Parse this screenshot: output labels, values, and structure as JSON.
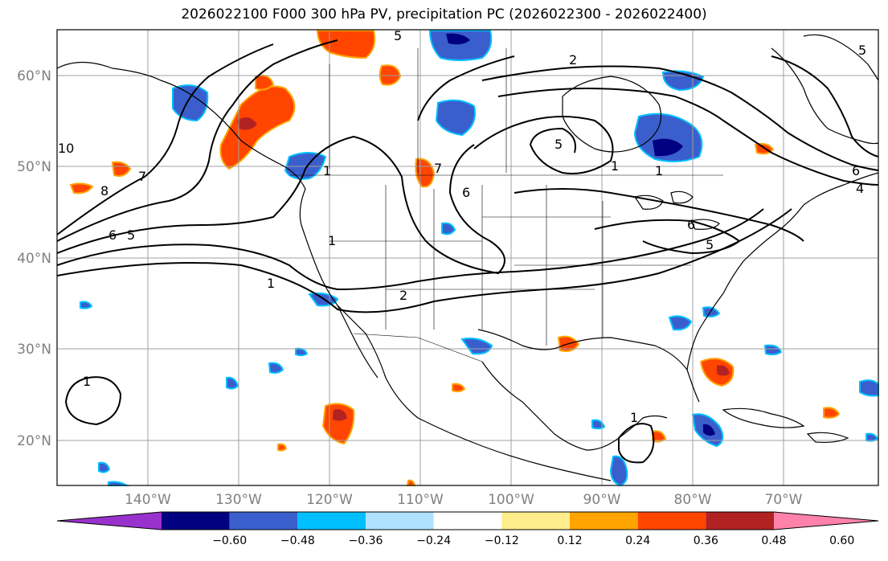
{
  "title": "2026022100 F000 300 hPa PV, precipitation PC (2026022300 - 2026022400)",
  "lat_ticks": [
    "60°N",
    "50°N",
    "40°N",
    "30°N",
    "20°N"
  ],
  "lon_ticks": [
    "140°W",
    "130°W",
    "120°W",
    "110°W",
    "100°W",
    "90°W",
    "80°W",
    "70°W"
  ],
  "colorbar": {
    "labels": [
      "−0.60",
      "−0.48",
      "−0.36",
      "−0.24",
      "−0.12",
      "0.12",
      "0.24",
      "0.36",
      "0.48",
      "0.60"
    ],
    "colors": [
      "#9932cc",
      "#000080",
      "#3a5fcd",
      "#00bfff",
      "#b0e2ff",
      "#ffffff",
      "#ffec8b",
      "#ffa500",
      "#ff4500",
      "#b22222",
      "#ff82ab"
    ]
  },
  "contour_labels": [
    "5",
    "2",
    "6",
    "1",
    "8",
    "7",
    "10",
    "6",
    "5",
    "1",
    "1",
    "2",
    "5",
    "7",
    "6",
    "5",
    "1",
    "6",
    "5",
    "4",
    "1",
    "1",
    "1"
  ]
}
